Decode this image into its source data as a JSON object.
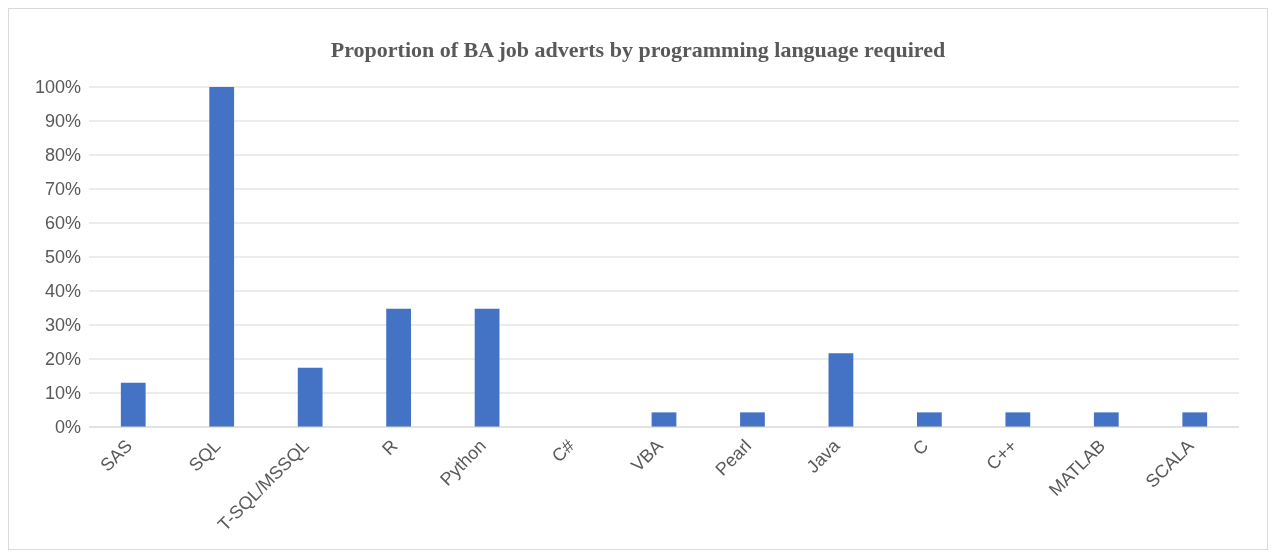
{
  "chart_data": {
    "type": "bar",
    "title": "Proportion of BA job adverts by programming language required",
    "categories": [
      "SAS",
      "SQL",
      "T-SQL/MSSQL",
      "R",
      "Python",
      "C#",
      "VBA",
      "Pearl",
      "Java",
      "C",
      "C++",
      "MATLAB",
      "SCALA"
    ],
    "values": [
      13,
      100,
      17.4,
      34.8,
      34.8,
      0,
      4.3,
      4.3,
      21.7,
      4.3,
      4.3,
      4.3,
      4.3
    ],
    "color": "#4472c4",
    "ylim": [
      0,
      100
    ],
    "yticks": [
      {
        "value": 0,
        "label": "0%"
      },
      {
        "value": 10,
        "label": "10%"
      },
      {
        "value": 20,
        "label": "20%"
      },
      {
        "value": 30,
        "label": "30%"
      },
      {
        "value": 40,
        "label": "40%"
      },
      {
        "value": 50,
        "label": "50%"
      },
      {
        "value": 60,
        "label": "60%"
      },
      {
        "value": 70,
        "label": "70%"
      },
      {
        "value": 80,
        "label": "80%"
      },
      {
        "value": 90,
        "label": "90%"
      },
      {
        "value": 100,
        "label": "100%"
      }
    ],
    "grid": "y"
  }
}
